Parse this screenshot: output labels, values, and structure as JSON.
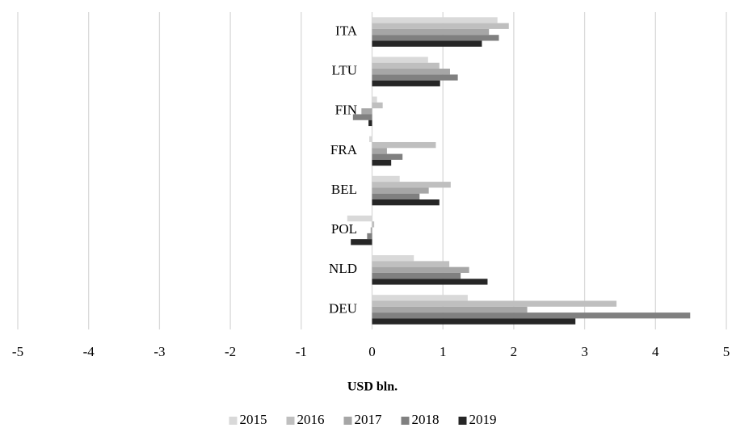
{
  "chart_data": {
    "type": "hbar",
    "x_label": "USD bln.",
    "categories": [
      "ITA",
      "LTU",
      "FIN",
      "FRA",
      "BEL",
      "POL",
      "NLD",
      "DEU"
    ],
    "series": [
      {
        "name": "2015",
        "color": "#d9d9d9",
        "values": [
          1.77,
          0.79,
          0.07,
          -0.04,
          0.39,
          -0.35,
          0.59,
          1.35
        ]
      },
      {
        "name": "2016",
        "color": "#bfbfbf",
        "values": [
          1.93,
          0.95,
          0.15,
          0.9,
          1.11,
          0.03,
          1.09,
          3.45
        ]
      },
      {
        "name": "2017",
        "color": "#a6a6a6",
        "values": [
          1.65,
          1.1,
          -0.15,
          0.21,
          0.8,
          -0.02,
          1.37,
          2.19
        ]
      },
      {
        "name": "2018",
        "color": "#808080",
        "values": [
          1.79,
          1.21,
          -0.27,
          0.43,
          0.67,
          -0.07,
          1.25,
          4.49
        ]
      },
      {
        "name": "2019",
        "color": "#262626",
        "values": [
          1.55,
          0.96,
          -0.05,
          0.27,
          0.95,
          -0.3,
          1.63,
          2.87
        ]
      }
    ],
    "xlim": [
      -5,
      5
    ],
    "xticks": [
      -5,
      -4,
      -3,
      -2,
      -1,
      0,
      1,
      2,
      3,
      4,
      5
    ],
    "grid": true,
    "legend": "bottom"
  }
}
